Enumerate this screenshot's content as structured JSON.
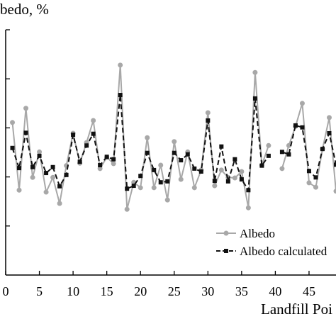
{
  "chart_data": {
    "type": "line",
    "title": "",
    "ylabel": "bedo, %",
    "xlabel": "Landfill Poi",
    "xlim": [
      0,
      49
    ],
    "ylim": [
      0,
      5
    ],
    "xticks": [
      0,
      5,
      10,
      15,
      20,
      25,
      30,
      35,
      40,
      45
    ],
    "yticks": [
      1,
      2,
      3,
      4,
      5
    ],
    "grid": false,
    "legend": "lower-right",
    "x": [
      1,
      2,
      3,
      4,
      5,
      6,
      7,
      8,
      9,
      10,
      11,
      12,
      13,
      14,
      15,
      16,
      17,
      18,
      19,
      20,
      21,
      22,
      23,
      24,
      25,
      26,
      27,
      28,
      29,
      30,
      31,
      32,
      33,
      34,
      35,
      36,
      37,
      38,
      39,
      40,
      41,
      42,
      43,
      44,
      45,
      46,
      47,
      48,
      49
    ],
    "series": [
      {
        "name": "Albedo",
        "color": "#a8a8a8",
        "marker": "circle",
        "dashed": false,
        "values": [
          3.11,
          1.73,
          3.4,
          1.99,
          2.51,
          1.69,
          1.99,
          1.46,
          2.23,
          2.89,
          2.28,
          2.7,
          3.15,
          2.17,
          2.4,
          2.27,
          4.28,
          1.34,
          1.89,
          1.78,
          2.8,
          1.78,
          2.24,
          1.53,
          2.72,
          1.95,
          2.51,
          1.78,
          2.14,
          3.31,
          1.82,
          2.14,
          1.99,
          1.98,
          2.11,
          1.37,
          4.13,
          2.24,
          2.64,
          null,
          2.17,
          2.64,
          3.03,
          3.5,
          1.88,
          1.79,
          2.57,
          3.21,
          1.71
        ]
      },
      {
        "name": "Albedo calculated",
        "color": "#111111",
        "marker": "square",
        "dashed": true,
        "values": [
          2.59,
          2.18,
          2.9,
          2.2,
          2.43,
          2.08,
          2.2,
          1.81,
          2.04,
          2.86,
          2.31,
          2.64,
          2.88,
          2.24,
          2.41,
          2.36,
          3.67,
          1.76,
          1.82,
          2.02,
          2.49,
          2.14,
          1.89,
          1.91,
          2.49,
          2.34,
          2.46,
          2.17,
          2.11,
          3.15,
          1.92,
          2.62,
          1.91,
          2.36,
          1.95,
          1.73,
          3.6,
          2.23,
          2.43,
          null,
          2.51,
          2.46,
          3.05,
          3.01,
          2.12,
          1.99,
          2.57,
          2.89,
          2.25
        ]
      }
    ]
  }
}
